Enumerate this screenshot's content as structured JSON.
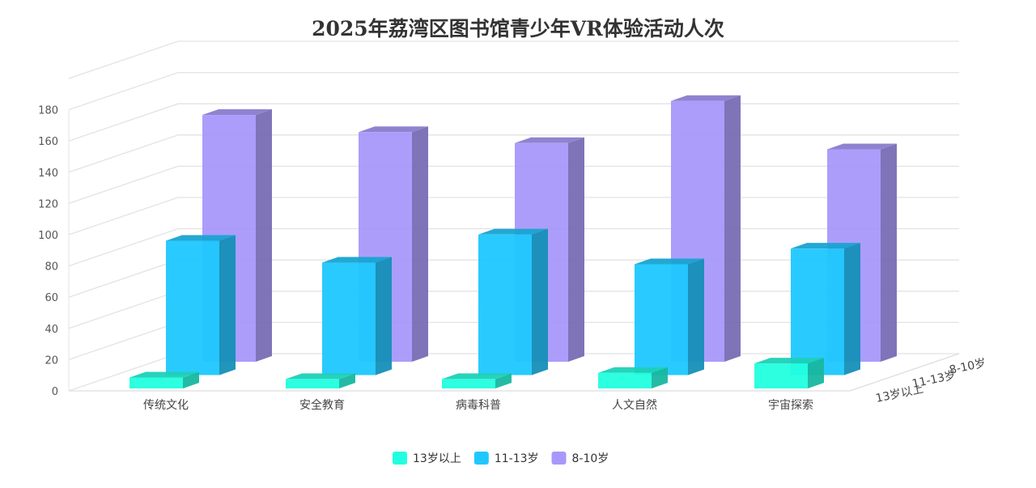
{
  "chart_data": {
    "type": "bar",
    "title": "2025年荔湾区图书馆青少年VR体验活动人次",
    "categories": [
      "传统文化",
      "安全教育",
      "病毒科普",
      "人文自然",
      "宇宙探索"
    ],
    "series": [
      {
        "name": "13岁以上",
        "values": [
          7,
          6,
          6,
          10,
          16
        ],
        "color": "#22ffe0"
      },
      {
        "name": "11-13岁",
        "values": [
          86,
          72,
          90,
          71,
          81
        ],
        "color": "#1ec8ff"
      },
      {
        "name": "8-10岁",
        "values": [
          158,
          147,
          140,
          167,
          136
        ],
        "color": "#a898fb"
      }
    ],
    "yticks": [
      0,
      20,
      40,
      60,
      80,
      100,
      120,
      140,
      160,
      180
    ],
    "ylim": [
      0,
      180
    ],
    "xlabel": "",
    "ylabel": "",
    "grid": true,
    "legend": "bottom-center",
    "three_d": true
  }
}
